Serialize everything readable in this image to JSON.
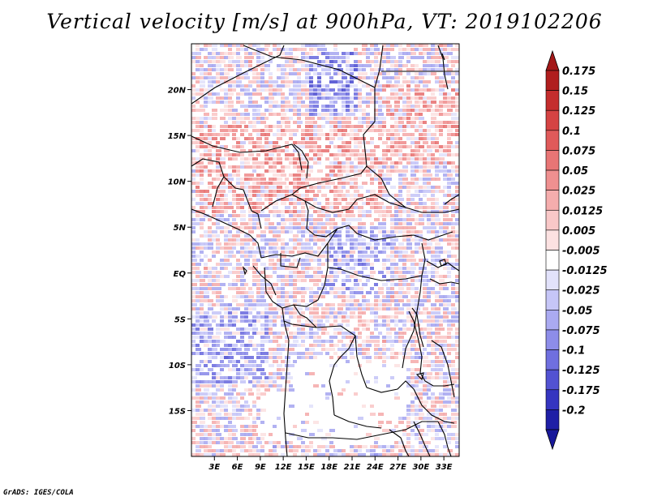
{
  "title": "Vertical velocity [m/s] at 900hPa, VT: 2019102206",
  "credit": "GrADS: IGES/COLA",
  "map": {
    "region": "Central Africa",
    "variable": "Vertical velocity",
    "units": "m/s",
    "level": "900hPa",
    "valid_time": "2019102206",
    "lon_range": [
      0,
      35
    ],
    "lat_range": [
      -20,
      25
    ],
    "lon_ticks": [
      {
        "value": 3,
        "label": "3E"
      },
      {
        "value": 6,
        "label": "6E"
      },
      {
        "value": 9,
        "label": "9E"
      },
      {
        "value": 12,
        "label": "12E"
      },
      {
        "value": 15,
        "label": "15E"
      },
      {
        "value": 18,
        "label": "18E"
      },
      {
        "value": 21,
        "label": "21E"
      },
      {
        "value": 24,
        "label": "24E"
      },
      {
        "value": 27,
        "label": "27E"
      },
      {
        "value": 30,
        "label": "30E"
      },
      {
        "value": 33,
        "label": "33E"
      }
    ],
    "lat_ticks": [
      {
        "value": 20,
        "label": "20N"
      },
      {
        "value": 15,
        "label": "15N"
      },
      {
        "value": 10,
        "label": "10N"
      },
      {
        "value": 5,
        "label": "5N"
      },
      {
        "value": 0,
        "label": "EQ"
      },
      {
        "value": -5,
        "label": "5S"
      },
      {
        "value": -10,
        "label": "10S"
      },
      {
        "value": -15,
        "label": "15S"
      }
    ]
  },
  "colorbar": {
    "levels": [
      {
        "label": "0.175",
        "color": "#b01e1e"
      },
      {
        "label": "0.15",
        "color": "#c42d2d"
      },
      {
        "label": "0.125",
        "color": "#d54343"
      },
      {
        "label": "0.1",
        "color": "#e05a5a"
      },
      {
        "label": "0.075",
        "color": "#e87575"
      },
      {
        "label": "0.05",
        "color": "#ef9090"
      },
      {
        "label": "0.025",
        "color": "#f5adad"
      },
      {
        "label": "0.0125",
        "color": "#f9c8c8"
      },
      {
        "label": "0.005",
        "color": "#fce2e2"
      },
      {
        "label": "-0.005",
        "color": "#ffffff"
      },
      {
        "label": "-0.0125",
        "color": "#e2e2fb"
      },
      {
        "label": "-0.025",
        "color": "#c6c6f7"
      },
      {
        "label": "-0.05",
        "color": "#aaaaf1"
      },
      {
        "label": "-0.075",
        "color": "#8d8de9"
      },
      {
        "label": "-0.1",
        "color": "#6f6fdf"
      },
      {
        "label": "-0.125",
        "color": "#5252d2"
      },
      {
        "label": "-0.175",
        "color": "#3535c0"
      },
      {
        "label": "-0.2",
        "color": "#1f1fa6"
      }
    ],
    "top_triangle_color": "#a31818",
    "bottom_triangle_color": "#18189a"
  }
}
